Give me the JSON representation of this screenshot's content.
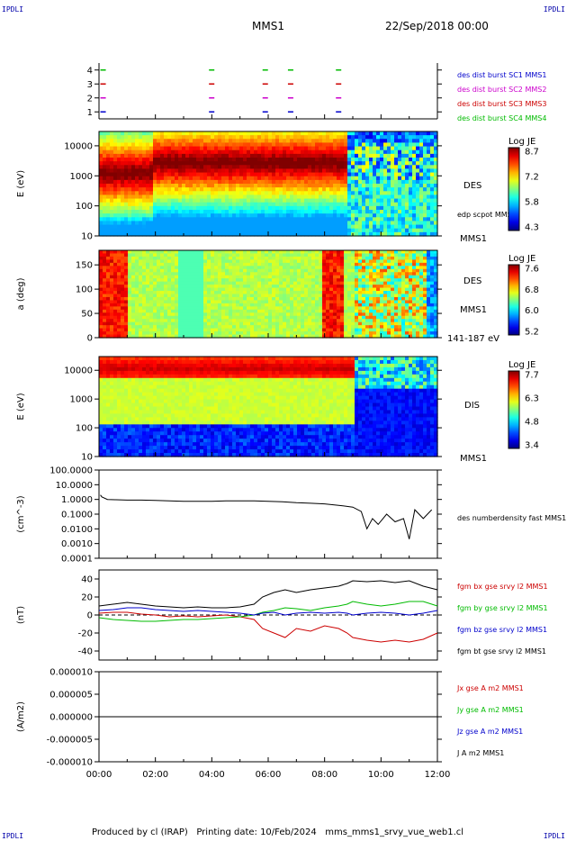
{
  "corners": {
    "tl": "IPDLI",
    "tr": "IPDLI",
    "bl": "IPDLI",
    "br": "IPDLI"
  },
  "header": {
    "title": "MMS1",
    "datetime": "22/Sep/2018 00:00"
  },
  "footer": {
    "text": "Produced by cl (IRAP)   Printing date: 10/Feb/2024   mms_mms1_srvy_vue_web1.cl"
  },
  "colors": {
    "mms1": "#0000cc",
    "mms2": "#cc00cc",
    "mms3": "#cc0000",
    "mms4": "#00bb00",
    "bt": "#000000"
  },
  "chart_data": [
    {
      "type": "scatter",
      "title": "",
      "ylim": [
        0.5,
        4.5
      ],
      "xlim": [
        0,
        12
      ],
      "x_ticks": [
        "00:00",
        "02:00",
        "04:00",
        "06:00",
        "08:00",
        "10:00",
        "12:00"
      ],
      "y_ticks": [
        "1",
        "2",
        "3",
        "4"
      ],
      "legend": [
        "des dist burst SC1 MMS1",
        "des dist burst SC2 MMS2",
        "des dist burst SC3 MMS3",
        "des dist burst SC4 MMS4"
      ],
      "series": [
        {
          "name": "des dist burst SC1 MMS1",
          "y": 1,
          "x": [
            0.05,
            3.9,
            5.8,
            6.7,
            8.4
          ]
        },
        {
          "name": "des dist burst SC2 MMS2",
          "y": 2,
          "x": [
            0.05,
            3.9,
            5.8,
            6.7,
            8.4
          ]
        },
        {
          "name": "des dist burst SC3 MMS3",
          "y": 3,
          "x": [
            0.05,
            3.9,
            5.8,
            6.7,
            8.4
          ]
        },
        {
          "name": "des dist burst SC4 MMS4",
          "y": 4,
          "x": [
            0.05,
            3.9,
            5.8,
            6.7,
            8.4
          ]
        }
      ]
    },
    {
      "type": "heatmap",
      "ylabel": "E (eV)",
      "y_scale": "log",
      "ylim": [
        10,
        30000
      ],
      "y_ticks": [
        "10",
        "100",
        "1000",
        "10000"
      ],
      "labels": [
        "DES",
        "MMS1"
      ],
      "overlay_label": "edp scpot MMS1",
      "colorbar": {
        "title": "Log JE",
        "ticks": [
          "8.7",
          "7.2",
          "5.8",
          "4.3"
        ]
      }
    },
    {
      "type": "heatmap",
      "ylabel": "a (deg)",
      "ylim": [
        0,
        180
      ],
      "y_ticks": [
        "0",
        "50",
        "100",
        "150"
      ],
      "labels": [
        "DES",
        "MMS1",
        "141-187 eV"
      ],
      "colorbar": {
        "title": "Log JE",
        "ticks": [
          "7.6",
          "6.8",
          "6.0",
          "5.2"
        ]
      }
    },
    {
      "type": "heatmap",
      "ylabel": "E (eV)",
      "y_scale": "log",
      "ylim": [
        10,
        30000
      ],
      "y_ticks": [
        "10",
        "100",
        "1000",
        "10000"
      ],
      "labels": [
        "DIS",
        "MMS1"
      ],
      "colorbar": {
        "title": "Log JE",
        "ticks": [
          "7.7",
          "6.3",
          "4.8",
          "3.4"
        ]
      }
    },
    {
      "type": "line",
      "ylabel": "(cm^-3)",
      "y_scale": "log",
      "ylim": [
        0.0001,
        100
      ],
      "y_ticks": [
        "100.0000",
        "10.0000",
        "1.0000",
        "0.1000",
        "0.0100",
        "0.0010",
        "0.0001"
      ],
      "legend": [
        "des numberdensity fast MMS1"
      ],
      "series": [
        {
          "name": "des numberdensity fast MMS1",
          "x": [
            0.05,
            0.1,
            0.3,
            0.6,
            1.0,
            1.5,
            2.0,
            2.5,
            3.0,
            3.5,
            4.0,
            4.5,
            5.0,
            5.5,
            6.0,
            6.5,
            7.0,
            7.5,
            8.0,
            8.5,
            9.0,
            9.3,
            9.5,
            9.7,
            9.9,
            10.2,
            10.5,
            10.8,
            11.0,
            11.2,
            11.5,
            11.8
          ],
          "y": [
            2.0,
            1.5,
            1.0,
            0.95,
            0.9,
            0.9,
            0.85,
            0.8,
            0.75,
            0.75,
            0.75,
            0.8,
            0.8,
            0.8,
            0.75,
            0.7,
            0.6,
            0.55,
            0.5,
            0.4,
            0.3,
            0.15,
            0.01,
            0.05,
            0.02,
            0.1,
            0.03,
            0.05,
            0.002,
            0.2,
            0.05,
            0.2
          ]
        }
      ]
    },
    {
      "type": "line",
      "ylabel": "(nT)",
      "ylim": [
        -50,
        50
      ],
      "y_ticks": [
        "40",
        "20",
        "0",
        "-20",
        "-40"
      ],
      "legend": [
        "fgm bx gse srvy l2 MMS1",
        "fgm by gse srvy l2 MMS1",
        "fgm bz gse srvy l2 MMS1",
        "fgm bt gse srvy l2 MMS1"
      ],
      "series": [
        {
          "name": "fgm bx gse srvy l2 MMS1",
          "x": [
            0,
            0.5,
            1,
            1.5,
            2,
            2.5,
            3,
            3.5,
            4,
            4.5,
            5,
            5.5,
            5.8,
            6.2,
            6.6,
            7,
            7.5,
            8,
            8.5,
            8.8,
            9,
            9.5,
            10,
            10.5,
            11,
            11.5,
            12
          ],
          "y": [
            2,
            3,
            3,
            1,
            0,
            -2,
            -1,
            -2,
            -1,
            0,
            -2,
            -5,
            -15,
            -20,
            -25,
            -15,
            -18,
            -12,
            -15,
            -20,
            -25,
            -28,
            -30,
            -28,
            -30,
            -27,
            -20
          ]
        },
        {
          "name": "fgm by gse srvy l2 MMS1",
          "x": [
            0,
            0.5,
            1,
            1.5,
            2,
            2.5,
            3,
            3.5,
            4,
            4.5,
            5,
            5.5,
            5.8,
            6.2,
            6.6,
            7,
            7.5,
            8,
            8.5,
            8.8,
            9,
            9.5,
            10,
            10.5,
            11,
            11.5,
            12
          ],
          "y": [
            -3,
            -5,
            -6,
            -7,
            -7,
            -6,
            -5,
            -5,
            -4,
            -3,
            -2,
            0,
            3,
            5,
            8,
            7,
            5,
            8,
            10,
            12,
            15,
            12,
            10,
            12,
            15,
            15,
            10
          ]
        },
        {
          "name": "fgm bz gse srvy l2 MMS1",
          "x": [
            0,
            0.5,
            1,
            1.5,
            2,
            2.5,
            3,
            3.5,
            4,
            4.5,
            5,
            5.5,
            5.8,
            6.2,
            6.6,
            7,
            7.5,
            8,
            8.5,
            8.8,
            9,
            9.5,
            10,
            10.5,
            11,
            11.5,
            12
          ],
          "y": [
            5,
            6,
            8,
            8,
            6,
            5,
            4,
            5,
            4,
            3,
            2,
            0,
            2,
            3,
            0,
            2,
            3,
            2,
            3,
            2,
            0,
            2,
            3,
            2,
            0,
            2,
            5
          ]
        },
        {
          "name": "fgm bt gse srvy l2 MMS1",
          "x": [
            0,
            0.5,
            1,
            1.5,
            2,
            2.5,
            3,
            3.5,
            4,
            4.5,
            5,
            5.5,
            5.8,
            6.2,
            6.6,
            7,
            7.5,
            8,
            8.5,
            8.8,
            9,
            9.5,
            10,
            10.5,
            11,
            11.5,
            12
          ],
          "y": [
            10,
            12,
            14,
            12,
            10,
            9,
            8,
            9,
            8,
            8,
            9,
            12,
            20,
            25,
            28,
            25,
            28,
            30,
            32,
            35,
            38,
            37,
            38,
            36,
            38,
            32,
            28
          ]
        }
      ]
    },
    {
      "type": "line",
      "ylabel": "(A/m2)",
      "ylim": [
        -1e-05,
        1e-05
      ],
      "y_ticks": [
        "0.000010",
        "0.000005",
        "0.000000",
        "-0.000005",
        "-0.000010"
      ],
      "legend": [
        "Jx gse A m2 MMS1",
        "Jy gse A m2 MMS1",
        "Jz gse A m2 MMS1",
        "J A m2 MMS1"
      ],
      "series": [
        {
          "name": "J A m2 MMS1",
          "x": [
            0,
            2,
            4,
            6,
            8,
            10,
            12
          ],
          "y": [
            0,
            0,
            0,
            0,
            0,
            0,
            0
          ]
        }
      ]
    }
  ]
}
